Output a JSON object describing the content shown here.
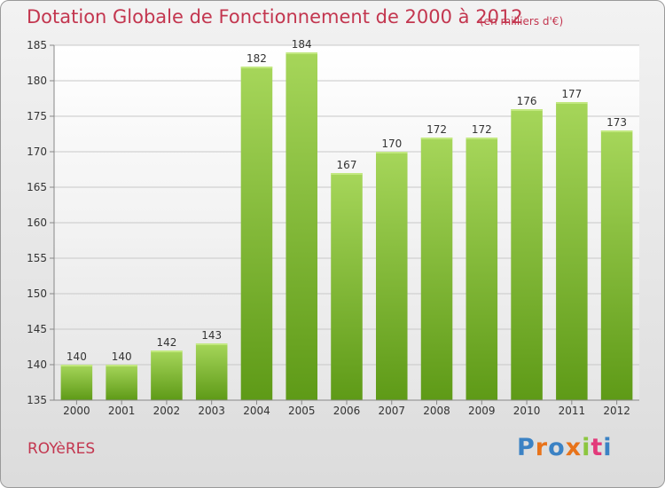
{
  "header": {
    "title": "Dotation Globale de Fonctionnement de 2000 à 2012",
    "unit": "(en milliers d'€)"
  },
  "footer": {
    "commune": "ROYèRES",
    "logo_text": "Proxiti"
  },
  "colors": {
    "title": "#c3364f",
    "bar_top": "#a6d65a",
    "bar_bottom": "#5e9a17",
    "grid": "#c8c8c8",
    "background": "#eeeeee"
  },
  "chart_data": {
    "type": "bar",
    "categories": [
      "2000",
      "2001",
      "2002",
      "2003",
      "2004",
      "2005",
      "2006",
      "2007",
      "2008",
      "2009",
      "2010",
      "2011",
      "2012"
    ],
    "values": [
      140,
      140,
      142,
      143,
      182,
      184,
      167,
      170,
      172,
      172,
      176,
      177,
      173
    ],
    "ylim": [
      135,
      185
    ],
    "yticks": [
      135,
      140,
      145,
      150,
      155,
      160,
      165,
      170,
      175,
      180,
      185
    ],
    "grid": true,
    "data_labels": true
  }
}
